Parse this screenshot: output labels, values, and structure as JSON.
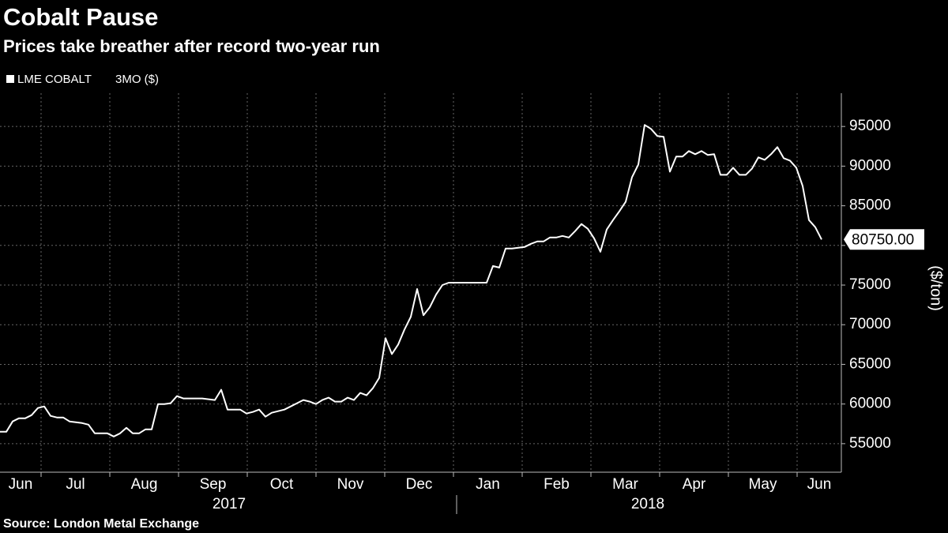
{
  "chart_data": {
    "type": "line",
    "title": "Cobalt Pause",
    "subtitle": "Prices take breather after record two-year run",
    "legend_suffix": "3MO ($)",
    "y_axis_label": "($/ton)",
    "source": "Source: London Metal Exchange",
    "months": [
      "Jun",
      "Jul",
      "Aug",
      "Sep",
      "Oct",
      "Nov",
      "Dec",
      "Jan",
      "Feb",
      "Mar",
      "Apr",
      "May",
      "Jun"
    ],
    "years": [
      "2017",
      "2018"
    ],
    "series": [
      {
        "name": "LME COBALT",
        "color": "#ffffff",
        "values": [
          56500,
          56500,
          57800,
          58200,
          58200,
          58600,
          59500,
          59700,
          58500,
          58300,
          58300,
          57800,
          57700,
          57600,
          57400,
          56300,
          56300,
          56300,
          55900,
          56300,
          57000,
          56300,
          56300,
          56800,
          56800,
          60000,
          60000,
          60100,
          61000,
          60700,
          60700,
          60700,
          60700,
          60600,
          60500,
          61800,
          59300,
          59300,
          59300,
          58800,
          59000,
          59300,
          58400,
          58900,
          59100,
          59300,
          59700,
          60100,
          60500,
          60300,
          60000,
          60500,
          60800,
          60300,
          60300,
          60800,
          60500,
          61400,
          61100,
          62000,
          63300,
          68300,
          66300,
          67500,
          69400,
          71000,
          74500,
          71200,
          72200,
          73800,
          75000,
          75300,
          75300,
          75300,
          75300,
          75300,
          75300,
          75300,
          77400,
          77200,
          79600,
          79600,
          79700,
          79800,
          80200,
          80500,
          80500,
          81000,
          81000,
          81200,
          81000,
          81800,
          82700,
          82100,
          80900,
          79200,
          82000,
          83200,
          84300,
          85500,
          88600,
          90200,
          95200,
          94700,
          93800,
          93700,
          89300,
          91200,
          91200,
          91900,
          91500,
          91900,
          91400,
          91500,
          88900,
          88900,
          89800,
          88900,
          88900,
          89700,
          91100,
          90800,
          91500,
          92400,
          91000,
          90700,
          89800,
          87500,
          83200,
          82300,
          80750
        ]
      }
    ],
    "annotations": [
      {
        "value": 80750,
        "label": "80750.00"
      }
    ],
    "ylim": [
      51700,
      99200
    ],
    "yticks": [
      55000,
      60000,
      65000,
      70000,
      75000,
      80000,
      85000,
      90000,
      95000
    ],
    "grid": true
  }
}
